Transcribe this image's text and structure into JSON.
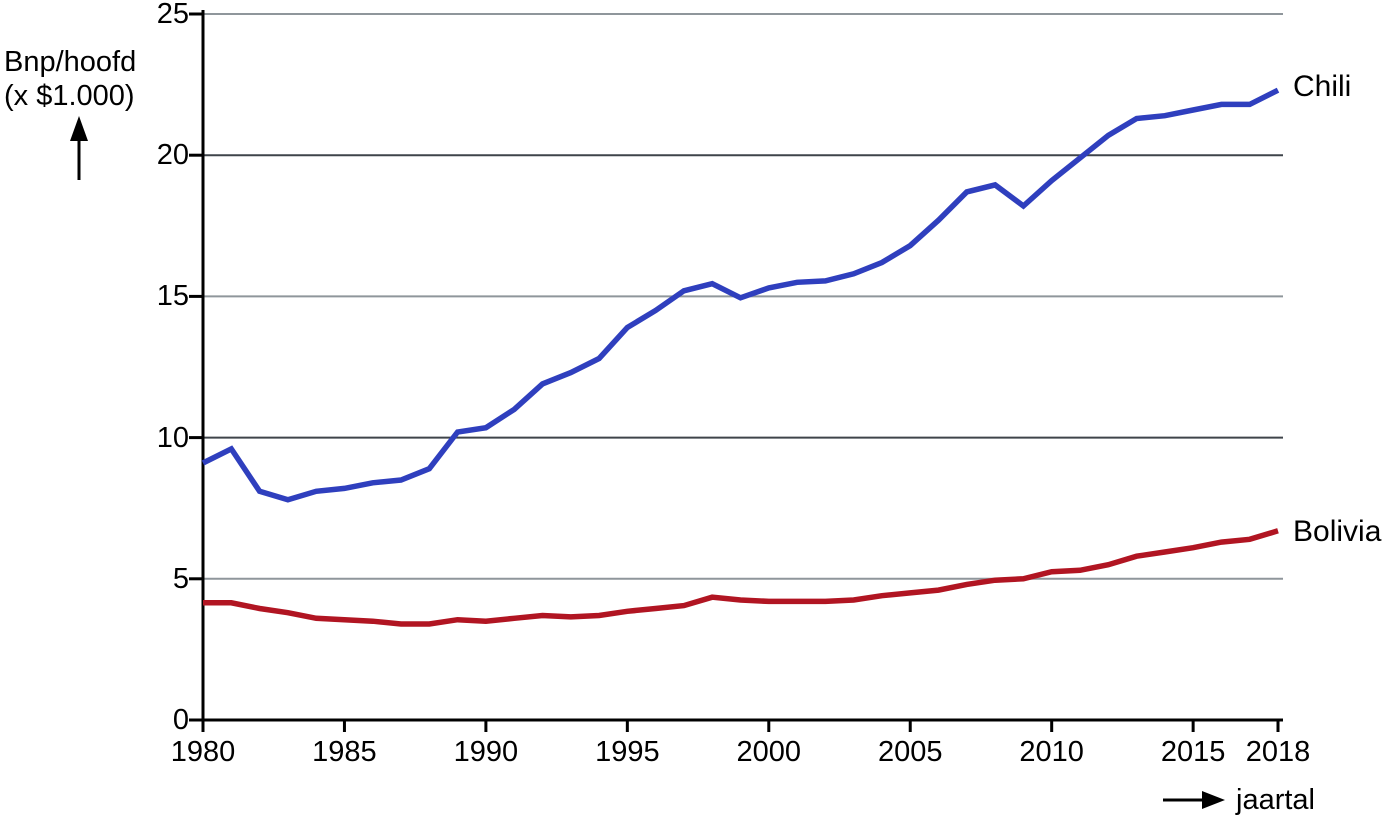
{
  "chart_data": {
    "type": "line",
    "title": "",
    "ylabel_line1": "Bnp/hoofd",
    "ylabel_line2": "(x $1.000)",
    "xlabel": "jaartal",
    "x": [
      1980,
      1981,
      1982,
      1983,
      1984,
      1985,
      1986,
      1987,
      1988,
      1989,
      1990,
      1991,
      1992,
      1993,
      1994,
      1995,
      1996,
      1997,
      1998,
      1999,
      2000,
      2001,
      2002,
      2003,
      2004,
      2005,
      2006,
      2007,
      2008,
      2009,
      2010,
      2011,
      2012,
      2013,
      2014,
      2015,
      2016,
      2017,
      2018
    ],
    "series": [
      {
        "name": "Chili",
        "color": "#2f3fbe",
        "values": [
          9.1,
          9.6,
          8.1,
          7.8,
          8.1,
          8.2,
          8.4,
          8.5,
          8.9,
          10.2,
          10.35,
          11.0,
          11.9,
          12.3,
          12.8,
          13.9,
          14.5,
          15.2,
          15.45,
          14.95,
          15.3,
          15.5,
          15.55,
          15.8,
          16.2,
          16.8,
          17.7,
          18.7,
          18.95,
          18.2,
          19.1,
          19.9,
          20.7,
          21.3,
          21.4,
          21.6,
          21.8,
          21.8,
          22.3
        ]
      },
      {
        "name": "Bolivia",
        "color": "#b11522",
        "values": [
          4.15,
          4.15,
          3.95,
          3.8,
          3.6,
          3.55,
          3.5,
          3.4,
          3.4,
          3.55,
          3.5,
          3.6,
          3.7,
          3.65,
          3.7,
          3.85,
          3.95,
          4.05,
          4.35,
          4.25,
          4.2,
          4.2,
          4.2,
          4.25,
          4.4,
          4.5,
          4.6,
          4.8,
          4.95,
          5.0,
          5.25,
          5.3,
          5.5,
          5.8,
          5.95,
          6.1,
          6.3,
          6.4,
          6.7
        ]
      }
    ],
    "xlim": [
      1980,
      2018
    ],
    "ylim": [
      0,
      25
    ],
    "yticks": [
      0,
      5,
      10,
      15,
      20,
      25
    ],
    "xticks": [
      1980,
      1985,
      1990,
      1995,
      2000,
      2005,
      2010,
      2015,
      2018
    ],
    "grid": {
      "on": true,
      "light_color": "#8f969b",
      "dark_color": "#3f444a",
      "light_at": [
        5,
        15,
        25
      ],
      "dark_at": [
        10,
        20
      ]
    },
    "axis_color": "#000000",
    "legend_position": "labels-at-line-ends"
  }
}
